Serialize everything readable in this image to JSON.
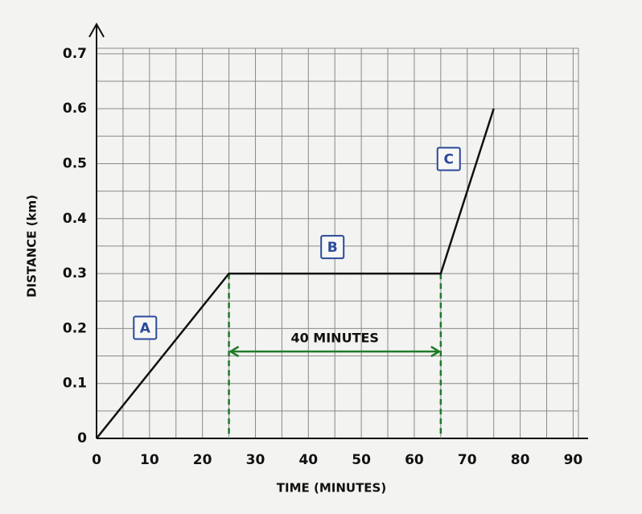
{
  "chart_data": {
    "type": "line",
    "x": [
      0,
      25,
      65,
      75
    ],
    "series": [
      {
        "values": [
          0,
          0.3,
          0.3,
          0.6
        ],
        "color": "#111111"
      }
    ],
    "xlabel": "TIME (MINUTES)",
    "ylabel": "DISTANCE (km)",
    "xlim": [
      0,
      91
    ],
    "ylim": [
      0,
      0.71
    ],
    "xticks": [
      0,
      10,
      20,
      30,
      40,
      50,
      60,
      70,
      80,
      90
    ],
    "yticks": [
      0,
      0.1,
      0.2,
      0.3,
      0.4,
      0.5,
      0.6,
      0.7
    ],
    "grid": true,
    "annotations": [
      "A",
      "B",
      "C",
      "40 MINUTES"
    ],
    "annotation_color": "#2b4a9a",
    "bracket_color": "#1f7a2a"
  }
}
